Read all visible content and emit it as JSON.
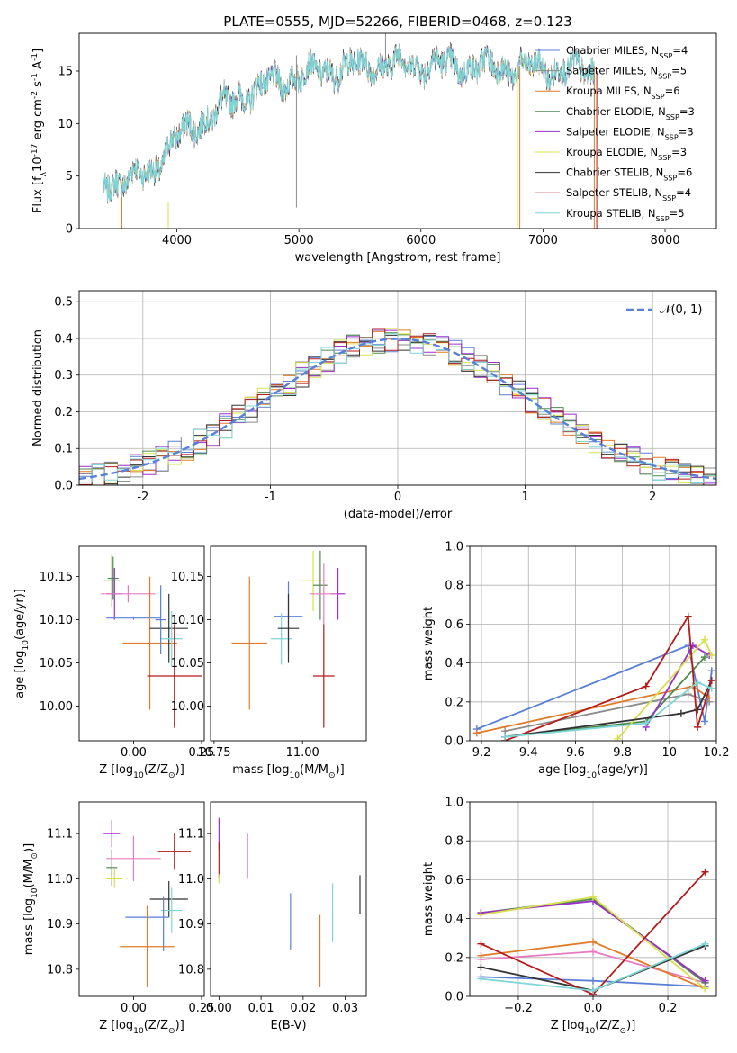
{
  "chart_data": [
    {
      "id": "spectrum",
      "type": "line",
      "title": "PLATE=0555, MJD=52266, FIBERID=0468, z=0.123",
      "xlabel": "wavelength [Angstrom, rest frame]",
      "ylabel": "Flux [f$_\\lambda$10$^{-17}$ erg cm$^{-2}$ s$^{-1}$ A$^{-1}$]",
      "xlim": [
        3200,
        8420
      ],
      "ylim": [
        0,
        18.6
      ],
      "xticks": [
        4000,
        5000,
        6000,
        7000,
        8000
      ],
      "yticks": [
        0,
        5,
        10,
        15
      ],
      "grid": false,
      "legend_position": "right",
      "series": [
        {
          "name": "Chabrier MILES, N$_{SSP}$=4",
          "color": "#5a7fd6"
        },
        {
          "name": "Salpeter MILES, N$_{SSP}$=5",
          "color": "#8b8b8b"
        },
        {
          "name": "Kroupa MILES, N$_{SSP}$=6",
          "color": "#e07b2a"
        },
        {
          "name": "Chabrier ELODIE, N$_{SSP}$=3",
          "color": "#4d8a4d"
        },
        {
          "name": "Salpeter ELODIE, N$_{SSP}$=3",
          "color": "#9b30c8"
        },
        {
          "name": "Kroupa ELODIE, N$_{SSP}$=3",
          "color": "#d6e04a"
        },
        {
          "name": "Chabrier STELIB, N$_{SSP}$=6",
          "color": "#333333"
        },
        {
          "name": "Salpeter STELIB, N$_{SSP}$=4",
          "color": "#b51a1a"
        },
        {
          "name": "Kroupa STELIB, N$_{SSP}$=5",
          "color": "#7fd6d6"
        }
      ],
      "continuum_shape": {
        "x": [
          3400,
          3600,
          3800,
          3950,
          4100,
          4300,
          4500,
          4700,
          4900,
          5100,
          5300,
          5600,
          6000,
          6500,
          7000,
          7400
        ],
        "y": [
          4.5,
          4.6,
          5.5,
          8.0,
          9.5,
          11.0,
          12.5,
          13.5,
          14.2,
          14.8,
          15.2,
          15.6,
          15.7,
          15.4,
          15.2,
          15.0
        ]
      },
      "spikes": [
        {
          "x": 3550,
          "ymin": 0,
          "ymax": 3.0,
          "color": "#e07b2a"
        },
        {
          "x": 3930,
          "ymin": 0,
          "ymax": 2.5,
          "color": "#d6e04a"
        },
        {
          "x": 4980,
          "ymin": 2.0,
          "ymax": 16.5,
          "color": "#8b8b8b"
        },
        {
          "x": 5710,
          "ymin": 16.0,
          "ymax": 19.0,
          "color": "#8b8b8b"
        },
        {
          "x": 6790,
          "ymin": 0,
          "ymax": 15.5,
          "color": "#d6e04a"
        },
        {
          "x": 6810,
          "ymin": 0,
          "ymax": 15.5,
          "color": "#e07b2a"
        },
        {
          "x": 7420,
          "ymin": 0,
          "ymax": 15.5,
          "color": "#e07b2a"
        },
        {
          "x": 7440,
          "ymin": 0,
          "ymax": 15.0,
          "color": "#b51a1a"
        }
      ]
    },
    {
      "id": "residuals",
      "type": "step",
      "xlabel": "(data-model)/error",
      "ylabel": "Normed distribution",
      "xlim": [
        -2.5,
        2.5
      ],
      "ylim": [
        0,
        0.53
      ],
      "xticks": [
        -2,
        -1,
        0,
        1,
        2
      ],
      "yticks": [
        0.0,
        0.1,
        0.2,
        0.3,
        0.4,
        0.5
      ],
      "grid": true,
      "legend_position": "upper right",
      "reference_curve": {
        "name": "$\\mathcal{N}(0,1)$",
        "color": "#5a7fd6",
        "style": "dashed"
      },
      "bin_width": 0.1,
      "series_colors": [
        "#5a7fd6",
        "#8b8b8b",
        "#e07b2a",
        "#4d8a4d",
        "#9b30c8",
        "#d6e04a",
        "#333333",
        "#b51a1a",
        "#7fd6d6"
      ]
    },
    {
      "id": "age_vs_Z",
      "type": "errorbar",
      "xlabel": "Z [log$_{10}$(Z/Z$_\\odot$)]",
      "ylabel": "age  [log$_{10}$(age/yr)]",
      "xlim": [
        -0.2,
        0.26
      ],
      "ylim": [
        9.96,
        10.185
      ],
      "xticks": [
        -0.25,
        0.0,
        0.25
      ],
      "xticklabels": [
        "",
        "0.00",
        "0.25"
      ],
      "yticks": [
        10.0,
        10.05,
        10.1,
        10.15
      ],
      "points": [
        {
          "x": -0.08,
          "y": 10.145,
          "xerr": 0.03,
          "yerr": 0.03,
          "color": "#8fb63a"
        },
        {
          "x": -0.075,
          "y": 10.148,
          "xerr": 0.02,
          "yerr": 0.025,
          "color": "#4d8a4d"
        },
        {
          "x": -0.07,
          "y": 10.13,
          "xerr": 0.03,
          "yerr": 0.03,
          "color": "#9b30c8"
        },
        {
          "x": -0.02,
          "y": 10.13,
          "xerr": 0.1,
          "yerr": 0.01,
          "color": "#e87bc0"
        },
        {
          "x": 0.0,
          "y": 10.102,
          "xerr": 0.1,
          "yerr": 0.002,
          "color": "#5a7fd6"
        },
        {
          "x": 0.06,
          "y": 10.073,
          "xerr": 0.1,
          "yerr": 0.077,
          "color": "#e07b2a"
        },
        {
          "x": 0.13,
          "y": 10.09,
          "xerr": 0.07,
          "yerr": 0.04,
          "color": "#333333"
        },
        {
          "x": 0.14,
          "y": 10.078,
          "xerr": 0.04,
          "yerr": 0.032,
          "color": "#7fd6d6"
        },
        {
          "x": 0.1,
          "y": 10.1,
          "xerr": 0.02,
          "yerr": 0.04,
          "color": "#5a7fd6"
        },
        {
          "x": 0.15,
          "y": 10.035,
          "xerr": 0.1,
          "yerr": 0.06,
          "color": "#b51a1a"
        }
      ]
    },
    {
      "id": "age_vs_mass",
      "type": "errorbar",
      "xlabel": "mass [log$_{10}$(M/M$_\\odot$)]",
      "ylabel": "",
      "xlim": [
        10.74,
        11.18
      ],
      "ylim": [
        9.96,
        10.185
      ],
      "xticks": [
        10.75,
        11.0
      ],
      "xticklabels": [
        "10.75",
        "11.00"
      ],
      "yticks": [
        10.0,
        10.05,
        10.1,
        10.15
      ],
      "points": [
        {
          "x": 11.03,
          "y": 10.145,
          "xerr": 0.04,
          "yerr": 0.035,
          "color": "#d6e04a"
        },
        {
          "x": 11.05,
          "y": 10.14,
          "xerr": 0.02,
          "yerr": 0.04,
          "color": "#4d8a4d"
        },
        {
          "x": 11.1,
          "y": 10.13,
          "xerr": 0.02,
          "yerr": 0.03,
          "color": "#9b30c8"
        },
        {
          "x": 11.06,
          "y": 10.13,
          "xerr": 0.04,
          "yerr": 0.035,
          "color": "#e87bc0"
        },
        {
          "x": 10.96,
          "y": 10.104,
          "xerr": 0.04,
          "yerr": 0.04,
          "color": "#5a7fd6"
        },
        {
          "x": 10.94,
          "y": 10.078,
          "xerr": 0.03,
          "yerr": 0.03,
          "color": "#7fd6d6"
        },
        {
          "x": 10.96,
          "y": 10.09,
          "xerr": 0.03,
          "yerr": 0.04,
          "color": "#333333"
        },
        {
          "x": 10.85,
          "y": 10.073,
          "xerr": 0.05,
          "yerr": 0.077,
          "color": "#e07b2a"
        },
        {
          "x": 11.06,
          "y": 10.035,
          "xerr": 0.03,
          "yerr": 0.06,
          "color": "#b51a1a"
        }
      ]
    },
    {
      "id": "weight_vs_age",
      "type": "line",
      "xlabel": "age  [log$_{10}$(age/yr)]",
      "ylabel": "mass weight",
      "xlim": [
        9.15,
        10.2
      ],
      "ylim": [
        0,
        1.0
      ],
      "xticks": [
        9.2,
        9.4,
        9.6,
        9.8,
        10.0,
        10.2
      ],
      "yticks": [
        0.0,
        0.2,
        0.4,
        0.6,
        0.8,
        1.0
      ],
      "grid": true,
      "series": [
        {
          "name": "Chabrier MILES",
          "color": "#5a7fd6",
          "x": [
            9.18,
            10.08,
            10.15,
            10.18
          ],
          "y": [
            0.06,
            0.49,
            0.1,
            0.36
          ]
        },
        {
          "name": "Salpeter MILES",
          "color": "#8b8b8b",
          "x": [
            9.3,
            10.08,
            10.17
          ],
          "y": [
            0.05,
            0.24,
            0.2
          ]
        },
        {
          "name": "Kroupa MILES",
          "color": "#e07b2a",
          "x": [
            9.18,
            10.1,
            10.17
          ],
          "y": [
            0.04,
            0.28,
            0.22
          ]
        },
        {
          "name": "Chabrier ELODIE",
          "color": "#4d8a4d",
          "x": [
            9.3,
            9.9,
            10.15
          ],
          "y": [
            0.02,
            0.1,
            0.43
          ]
        },
        {
          "name": "Salpeter ELODIE",
          "color": "#9b30c8",
          "x": [
            9.9,
            10.1,
            10.17
          ],
          "y": [
            0.07,
            0.49,
            0.44
          ]
        },
        {
          "name": "Kroupa ELODIE",
          "color": "#d6e04a",
          "x": [
            9.78,
            10.15,
            10.18
          ],
          "y": [
            0.01,
            0.52,
            0.44
          ]
        },
        {
          "name": "Chabrier STELIB",
          "color": "#333333",
          "x": [
            9.3,
            10.05,
            10.12,
            10.18
          ],
          "y": [
            0.02,
            0.14,
            0.16,
            0.31
          ]
        },
        {
          "name": "Salpeter STELIB",
          "color": "#b51a1a",
          "x": [
            9.3,
            9.9,
            10.08,
            10.12,
            10.18
          ],
          "y": [
            0.0,
            0.28,
            0.64,
            0.07,
            0.31
          ]
        },
        {
          "name": "Kroupa STELIB",
          "color": "#7fd6d6",
          "x": [
            9.3,
            9.9,
            10.12,
            10.18
          ],
          "y": [
            0.02,
            0.09,
            0.3,
            0.27
          ]
        }
      ]
    },
    {
      "id": "mass_vs_Z",
      "type": "errorbar",
      "xlabel": "Z [log$_{10}$(Z/Z$_\\odot$)]",
      "ylabel": "mass [log$_{10}$(M/M$_\\odot$)]",
      "xlim": [
        -0.2,
        0.26
      ],
      "ylim": [
        10.74,
        11.17
      ],
      "xticks": [
        0.0,
        0.25
      ],
      "xticklabels": [
        "0.00",
        "0.25"
      ],
      "yticks": [
        10.8,
        10.9,
        11.0,
        11.1
      ],
      "points": [
        {
          "x": -0.08,
          "y": 11.1,
          "xerr": 0.03,
          "yerr": 0.03,
          "color": "#9b30c8"
        },
        {
          "x": -0.08,
          "y": 11.025,
          "xerr": 0.02,
          "yerr": 0.04,
          "color": "#4d8a4d"
        },
        {
          "x": -0.07,
          "y": 11.0,
          "xerr": 0.03,
          "yerr": 0.02,
          "color": "#d6e04a"
        },
        {
          "x": 0.0,
          "y": 11.045,
          "xerr": 0.1,
          "yerr": 0.05,
          "color": "#e87bc0"
        },
        {
          "x": 0.15,
          "y": 11.06,
          "xerr": 0.06,
          "yerr": 0.04,
          "color": "#b51a1a"
        },
        {
          "x": 0.13,
          "y": 10.955,
          "xerr": 0.07,
          "yerr": 0.04,
          "color": "#333333"
        },
        {
          "x": 0.14,
          "y": 10.93,
          "xerr": 0.04,
          "yerr": 0.05,
          "color": "#7fd6d6"
        },
        {
          "x": 0.05,
          "y": 10.915,
          "xerr": 0.08,
          "yerr": 0.0,
          "color": "#5a7fd6"
        },
        {
          "x": 0.11,
          "y": 10.9,
          "xerr": 0.0,
          "yerr": 0.06,
          "color": "#5a7fd6"
        },
        {
          "x": 0.05,
          "y": 10.85,
          "xerr": 0.1,
          "yerr": 0.09,
          "color": "#e07b2a"
        }
      ]
    },
    {
      "id": "mass_vs_ebv",
      "type": "errorbar",
      "xlabel": "E(B-V)",
      "ylabel": "",
      "xlim": [
        -0.002,
        0.035
      ],
      "ylim": [
        10.74,
        11.17
      ],
      "xticks": [
        0.0,
        0.01,
        0.02,
        0.03
      ],
      "xticklabels": [
        "0.00",
        "0.01",
        "0.02",
        "0.03"
      ],
      "yticks": [
        10.8,
        10.9,
        11.0,
        11.1
      ],
      "points": [
        {
          "x": 0.0,
          "y": 11.1,
          "xerr": 0.0,
          "yerr": 0.035,
          "color": "#9b30c8"
        },
        {
          "x": 0.0,
          "y": 11.04,
          "xerr": 0.0,
          "yerr": 0.04,
          "color": "#b51a1a"
        },
        {
          "x": 0.0,
          "y": 11.0,
          "xerr": 0.0,
          "yerr": 0.01,
          "color": "#d6e04a"
        },
        {
          "x": 0.0068,
          "y": 11.05,
          "xerr": 0.0,
          "yerr": 0.05,
          "color": "#e87bc0"
        },
        {
          "x": 0.017,
          "y": 10.905,
          "xerr": 0.0,
          "yerr": 0.063,
          "color": "#5a7fd6"
        },
        {
          "x": 0.024,
          "y": 10.84,
          "xerr": 0.0,
          "yerr": 0.08,
          "color": "#e07b2a"
        },
        {
          "x": 0.027,
          "y": 10.925,
          "xerr": 0.0,
          "yerr": 0.065,
          "color": "#7fd6d6"
        },
        {
          "x": 0.0335,
          "y": 10.965,
          "xerr": 0.0,
          "yerr": 0.043,
          "color": "#333333"
        }
      ]
    },
    {
      "id": "weight_vs_Z",
      "type": "line",
      "xlabel": "Z [log$_{10}$(Z/Z$_\\odot$)]",
      "ylabel": "mass weight",
      "xlim": [
        -0.33,
        0.33
      ],
      "ylim": [
        0,
        1.0
      ],
      "xticks": [
        -0.2,
        0.0,
        0.2
      ],
      "xticklabels": [
        "−0.2",
        "0.0",
        "0.2"
      ],
      "yticks": [
        0.0,
        0.2,
        0.4,
        0.6,
        0.8,
        1.0
      ],
      "grid": true,
      "series": [
        {
          "name": "Chabrier MILES",
          "color": "#5a7fd6",
          "x": [
            -0.3,
            0.0,
            0.3
          ],
          "y": [
            0.1,
            0.08,
            0.05
          ]
        },
        {
          "name": "Salpeter MILES",
          "color": "#e87bc0",
          "x": [
            -0.3,
            0.0,
            0.3
          ],
          "y": [
            0.19,
            0.23,
            0.07
          ]
        },
        {
          "name": "Kroupa MILES",
          "color": "#e07b2a",
          "x": [
            -0.3,
            0.0,
            0.3
          ],
          "y": [
            0.21,
            0.28,
            0.04
          ]
        },
        {
          "name": "Chabrier ELODIE",
          "color": "#4d8a4d",
          "x": [
            -0.3,
            0.0,
            0.3
          ],
          "y": [
            0.43,
            0.5,
            0.07
          ]
        },
        {
          "name": "Salpeter ELODIE",
          "color": "#9b30c8",
          "x": [
            -0.3,
            0.0,
            0.3
          ],
          "y": [
            0.43,
            0.49,
            0.08
          ]
        },
        {
          "name": "Kroupa ELODIE",
          "color": "#d6e04a",
          "x": [
            -0.3,
            0.0,
            0.3
          ],
          "y": [
            0.42,
            0.51,
            0.04
          ]
        },
        {
          "name": "Chabrier STELIB",
          "color": "#333333",
          "x": [
            -0.3,
            0.0,
            0.3
          ],
          "y": [
            0.15,
            0.03,
            0.26
          ]
        },
        {
          "name": "Salpeter STELIB",
          "color": "#b51a1a",
          "x": [
            -0.3,
            0.0,
            0.3
          ],
          "y": [
            0.27,
            0.01,
            0.64
          ]
        },
        {
          "name": "Kroupa STELIB",
          "color": "#7fd6d6",
          "x": [
            -0.3,
            0.0,
            0.3
          ],
          "y": [
            0.09,
            0.03,
            0.27
          ]
        }
      ]
    }
  ]
}
